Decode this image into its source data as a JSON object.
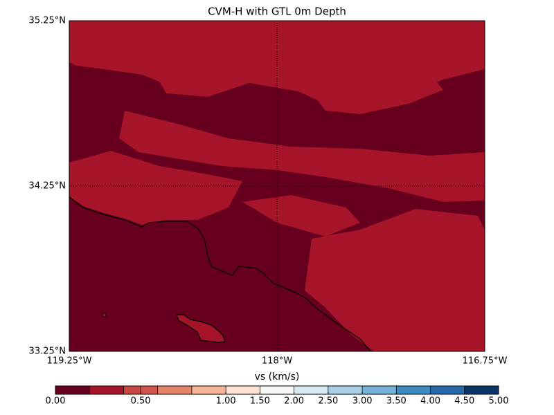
{
  "chart_data": {
    "type": "map",
    "title": "CVM-H with GTL 0m Depth",
    "xlim": [
      -119.25,
      -116.75
    ],
    "ylim": [
      33.25,
      35.25
    ],
    "xticks": [
      {
        "value": -119.25,
        "label": "119.25°W"
      },
      {
        "value": -118,
        "label": "118°W"
      },
      {
        "value": -116.75,
        "label": "116.75°W"
      }
    ],
    "yticks": [
      {
        "value": 33.25,
        "label": "33.25°N"
      },
      {
        "value": 34.25,
        "label": "34.25°N"
      },
      {
        "value": 35.25,
        "label": "35.25°N"
      }
    ],
    "grid": true,
    "colorbar": {
      "label": "vs (km/s)",
      "boundaries": [
        0,
        0.2,
        0.4,
        0.5,
        0.6,
        0.8,
        1.0,
        1.5,
        2.0,
        2.5,
        3.0,
        3.5,
        4.0,
        4.5,
        5.0
      ],
      "colors": [
        "#67001f",
        "#a51429",
        "#c94741",
        "#d0554c",
        "#e58368",
        "#f6b596",
        "#fde2d3",
        "#f7f7f7",
        "#d8e9f1",
        "#a9d0e5",
        "#74b2d7",
        "#3f8ac0",
        "#2668a9",
        "#0a3466"
      ],
      "ticks": [
        {
          "value": 0,
          "label": "0.00"
        },
        {
          "value": 0.5,
          "label": "0.50"
        },
        {
          "value": 1.0,
          "label": "1.00"
        },
        {
          "value": 1.5,
          "label": "1.50"
        },
        {
          "value": 2.0,
          "label": "2.00"
        },
        {
          "value": 2.5,
          "label": "2.50"
        },
        {
          "value": 3.0,
          "label": "3.00"
        },
        {
          "value": 3.5,
          "label": "3.50"
        },
        {
          "value": 4.0,
          "label": "4.00"
        },
        {
          "value": 4.5,
          "label": "4.50"
        },
        {
          "value": 5.0,
          "label": "5.00"
        }
      ]
    }
  }
}
